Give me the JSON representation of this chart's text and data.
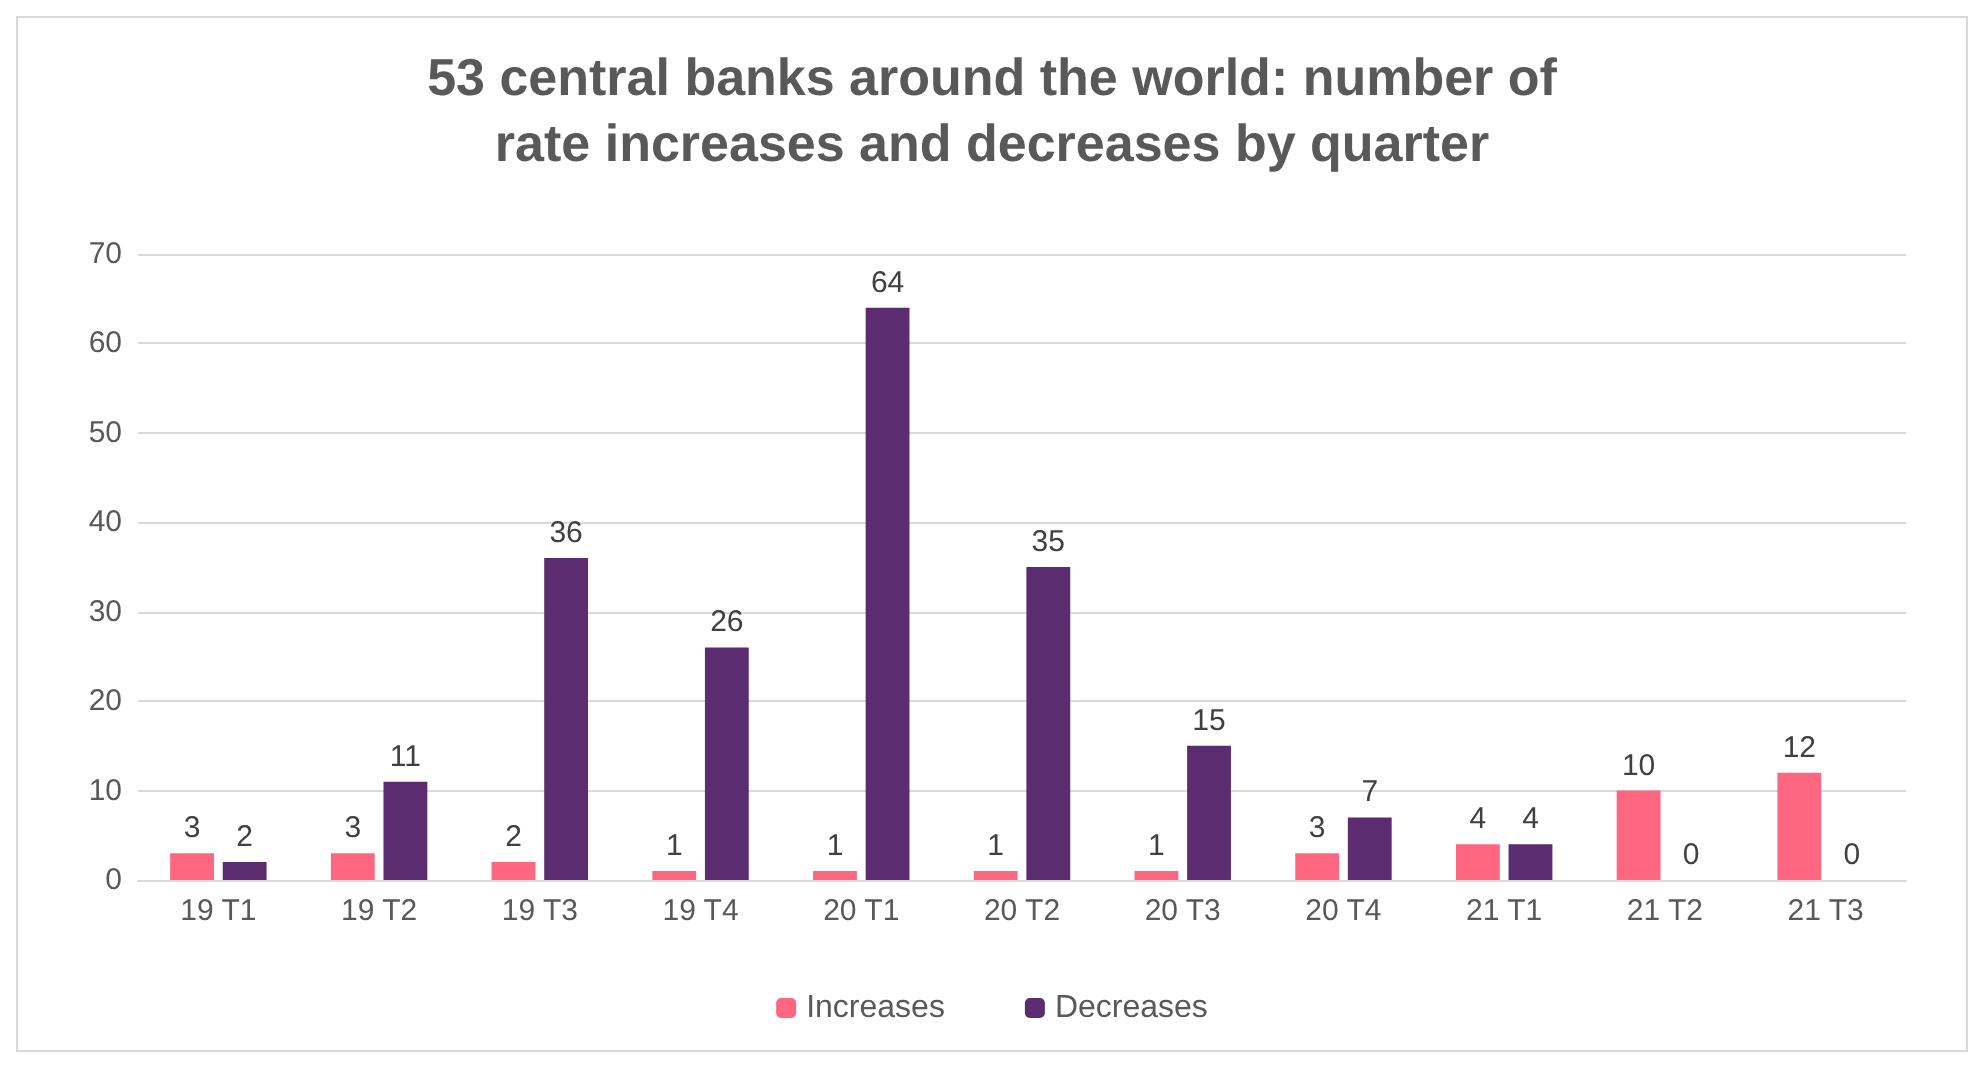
{
  "chart_data": {
    "type": "bar",
    "title": "53 central banks around the world: number of\nrate increases and decreases by quarter",
    "categories": [
      "19 T1",
      "19 T2",
      "19 T3",
      "19 T4",
      "20 T1",
      "20 T2",
      "20 T3",
      "20 T4",
      "21 T1",
      "21 T2",
      "21 T3"
    ],
    "series": [
      {
        "name": "Increases",
        "color": "#ff6680",
        "values": [
          3,
          3,
          2,
          1,
          1,
          1,
          1,
          3,
          4,
          10,
          12
        ]
      },
      {
        "name": "Decreases",
        "color": "#5b2c6f",
        "values": [
          2,
          11,
          36,
          26,
          64,
          35,
          15,
          7,
          4,
          0,
          0
        ]
      }
    ],
    "ylim": [
      0,
      70
    ],
    "yticks": [
      0,
      10,
      20,
      30,
      40,
      50,
      60,
      70
    ],
    "grid": "y",
    "legend": "bottom",
    "data_labels": true
  }
}
